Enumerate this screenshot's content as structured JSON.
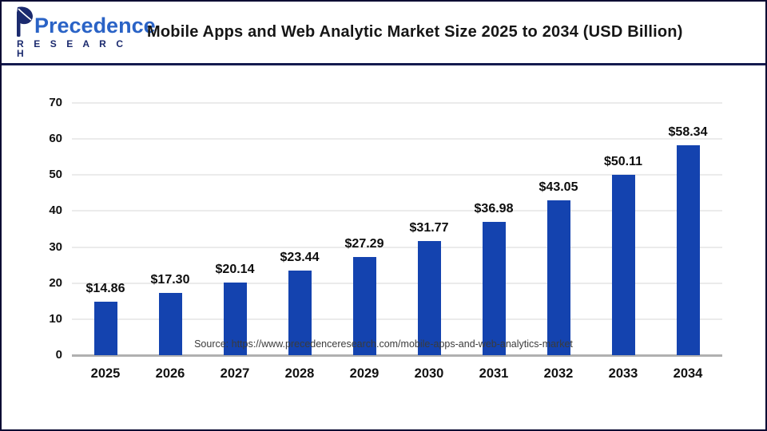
{
  "header": {
    "logo": {
      "name": "Precedence Research",
      "line1": "Precedence",
      "line2": "R E S E A R C H"
    },
    "title": "Mobile Apps and Web Analytic Market Size 2025 to 2034  (USD Billion)"
  },
  "chart_data": {
    "type": "bar",
    "title": "Mobile Apps and Web Analytic Market Size 2025 to 2034 (USD Billion)",
    "categories": [
      "2025",
      "2026",
      "2027",
      "2028",
      "2029",
      "2030",
      "2031",
      "2032",
      "2033",
      "2034"
    ],
    "values": [
      14.86,
      17.3,
      20.14,
      23.44,
      27.29,
      31.77,
      36.98,
      43.05,
      50.11,
      58.34
    ],
    "value_label_prefix": "$",
    "xlabel": "",
    "ylabel": "",
    "ylim": [
      0,
      70
    ],
    "ytick_step": 10,
    "grid": true,
    "legend": "none",
    "bar_color": "#1443af"
  },
  "footer": {
    "source": "Source: https://www.precedenceresearch.com/mobile-apps-and-web-analytics-market"
  },
  "colors": {
    "bar": "#1443af",
    "header_divider": "#141a4f",
    "outer_border": "#0a0a33",
    "gridline": "#ebebeb",
    "axis_baseline": "#b0b0b0",
    "logo_blue": "#2a63c6",
    "logo_navy": "#1b2a6e",
    "title_text": "#161616"
  }
}
